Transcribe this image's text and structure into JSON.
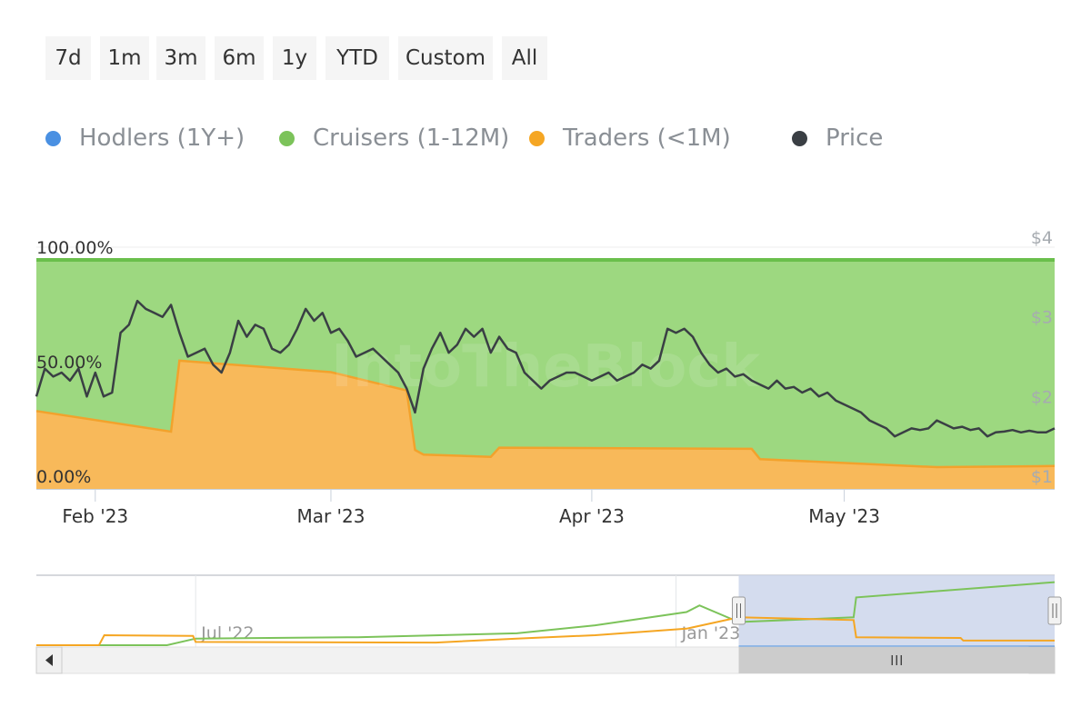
{
  "range_selector": {
    "buttons": [
      {
        "id": "7d",
        "label": "7d"
      },
      {
        "id": "1m",
        "label": "1m"
      },
      {
        "id": "3m",
        "label": "3m"
      },
      {
        "id": "6m",
        "label": "6m"
      },
      {
        "id": "1y",
        "label": "1y"
      },
      {
        "id": "ytd",
        "label": "YTD"
      },
      {
        "id": "custom",
        "label": "Custom"
      },
      {
        "id": "all",
        "label": "All"
      }
    ]
  },
  "legend": [
    {
      "name": "Hodlers (1Y+)",
      "color": "#4a90e2"
    },
    {
      "name": "Cruisers (1-12M)",
      "color": "#7cc35a"
    },
    {
      "name": "Traders (<1M)",
      "color": "#f5a623"
    },
    {
      "name": "Price",
      "color": "#3a3f44"
    }
  ],
  "watermark": "IntoTheBlock",
  "chart_data": {
    "type": "area",
    "x_ticks": [
      "Feb '23",
      "Mar '23",
      "Apr '23",
      "May '23"
    ],
    "y_left_ticks": [
      "0.00%",
      "50.00%",
      "100.00%"
    ],
    "y_right_ticks": [
      "$1",
      "$2",
      "$3",
      "$4"
    ],
    "y_left_range": [
      0,
      100
    ],
    "y_right_range": [
      1,
      4
    ],
    "x_range": [
      "2023-01-25",
      "2023-05-26"
    ],
    "series": [
      {
        "name": "Hodlers (1Y+)",
        "color": "#4a90e2",
        "points": [
          [
            "2023-01-25",
            0
          ],
          [
            "2023-05-26",
            0
          ]
        ]
      },
      {
        "name": "Cruisers (1-12M)",
        "color": "#7cc35a",
        "points": [
          [
            "2023-01-25",
            100
          ],
          [
            "2023-05-26",
            100
          ]
        ]
      },
      {
        "name": "Traders (<1M)",
        "color": "#f5a623",
        "points": [
          [
            "2023-01-25",
            34
          ],
          [
            "2023-02-10",
            25
          ],
          [
            "2023-02-11",
            56
          ],
          [
            "2023-03-01",
            51
          ],
          [
            "2023-03-10",
            43
          ],
          [
            "2023-03-11",
            17
          ],
          [
            "2023-03-12",
            15
          ],
          [
            "2023-03-20",
            14
          ],
          [
            "2023-03-21",
            18
          ],
          [
            "2023-04-20",
            17.5
          ],
          [
            "2023-04-21",
            13
          ],
          [
            "2023-05-12",
            9.5
          ],
          [
            "2023-05-26",
            10
          ]
        ]
      },
      {
        "name": "Price",
        "color": "#3a3f44",
        "points": [
          [
            "2023-01-25",
            2.0
          ],
          [
            "2023-01-26",
            2.35
          ],
          [
            "2023-01-27",
            2.25
          ],
          [
            "2023-01-28",
            2.3
          ],
          [
            "2023-01-29",
            2.2
          ],
          [
            "2023-01-30",
            2.35
          ],
          [
            "2023-01-31",
            2.0
          ],
          [
            "2023-02-01",
            2.3
          ],
          [
            "2023-02-02",
            2.0
          ],
          [
            "2023-02-03",
            2.05
          ],
          [
            "2023-02-04",
            2.8
          ],
          [
            "2023-02-05",
            2.9
          ],
          [
            "2023-02-06",
            3.2
          ],
          [
            "2023-02-07",
            3.1
          ],
          [
            "2023-02-08",
            3.05
          ],
          [
            "2023-02-09",
            3.0
          ],
          [
            "2023-02-10",
            3.15
          ],
          [
            "2023-02-11",
            2.8
          ],
          [
            "2023-02-12",
            2.5
          ],
          [
            "2023-02-13",
            2.55
          ],
          [
            "2023-02-14",
            2.6
          ],
          [
            "2023-02-15",
            2.4
          ],
          [
            "2023-02-16",
            2.3
          ],
          [
            "2023-02-17",
            2.55
          ],
          [
            "2023-02-18",
            2.95
          ],
          [
            "2023-02-19",
            2.75
          ],
          [
            "2023-02-20",
            2.9
          ],
          [
            "2023-02-21",
            2.85
          ],
          [
            "2023-02-22",
            2.6
          ],
          [
            "2023-02-23",
            2.55
          ],
          [
            "2023-02-24",
            2.65
          ],
          [
            "2023-02-25",
            2.85
          ],
          [
            "2023-02-26",
            3.1
          ],
          [
            "2023-02-27",
            2.95
          ],
          [
            "2023-02-28",
            3.05
          ],
          [
            "2023-03-01",
            2.8
          ],
          [
            "2023-03-02",
            2.85
          ],
          [
            "2023-03-03",
            2.7
          ],
          [
            "2023-03-04",
            2.5
          ],
          [
            "2023-03-05",
            2.55
          ],
          [
            "2023-03-06",
            2.6
          ],
          [
            "2023-03-07",
            2.5
          ],
          [
            "2023-03-08",
            2.4
          ],
          [
            "2023-03-09",
            2.3
          ],
          [
            "2023-03-10",
            2.1
          ],
          [
            "2023-03-11",
            1.8
          ],
          [
            "2023-03-12",
            2.35
          ],
          [
            "2023-03-13",
            2.6
          ],
          [
            "2023-03-14",
            2.8
          ],
          [
            "2023-03-15",
            2.55
          ],
          [
            "2023-03-16",
            2.65
          ],
          [
            "2023-03-17",
            2.85
          ],
          [
            "2023-03-18",
            2.75
          ],
          [
            "2023-03-19",
            2.85
          ],
          [
            "2023-03-20",
            2.55
          ],
          [
            "2023-03-21",
            2.75
          ],
          [
            "2023-03-22",
            2.6
          ],
          [
            "2023-03-23",
            2.55
          ],
          [
            "2023-03-24",
            2.3
          ],
          [
            "2023-03-25",
            2.2
          ],
          [
            "2023-03-26",
            2.1
          ],
          [
            "2023-03-27",
            2.2
          ],
          [
            "2023-03-28",
            2.25
          ],
          [
            "2023-03-29",
            2.3
          ],
          [
            "2023-03-30",
            2.3
          ],
          [
            "2023-03-31",
            2.25
          ],
          [
            "2023-04-01",
            2.2
          ],
          [
            "2023-04-02",
            2.25
          ],
          [
            "2023-04-03",
            2.3
          ],
          [
            "2023-04-04",
            2.2
          ],
          [
            "2023-04-05",
            2.25
          ],
          [
            "2023-04-06",
            2.3
          ],
          [
            "2023-04-07",
            2.4
          ],
          [
            "2023-04-08",
            2.35
          ],
          [
            "2023-04-09",
            2.45
          ],
          [
            "2023-04-10",
            2.85
          ],
          [
            "2023-04-11",
            2.8
          ],
          [
            "2023-04-12",
            2.85
          ],
          [
            "2023-04-13",
            2.75
          ],
          [
            "2023-04-14",
            2.55
          ],
          [
            "2023-04-15",
            2.4
          ],
          [
            "2023-04-16",
            2.3
          ],
          [
            "2023-04-17",
            2.35
          ],
          [
            "2023-04-18",
            2.25
          ],
          [
            "2023-04-19",
            2.28
          ],
          [
            "2023-04-20",
            2.2
          ],
          [
            "2023-04-21",
            2.15
          ],
          [
            "2023-04-22",
            2.1
          ],
          [
            "2023-04-23",
            2.2
          ],
          [
            "2023-04-24",
            2.1
          ],
          [
            "2023-04-25",
            2.12
          ],
          [
            "2023-04-26",
            2.05
          ],
          [
            "2023-04-27",
            2.1
          ],
          [
            "2023-04-28",
            2.0
          ],
          [
            "2023-04-29",
            2.05
          ],
          [
            "2023-04-30",
            1.95
          ],
          [
            "2023-05-01",
            1.9
          ],
          [
            "2023-05-02",
            1.85
          ],
          [
            "2023-05-03",
            1.8
          ],
          [
            "2023-05-04",
            1.7
          ],
          [
            "2023-05-05",
            1.65
          ],
          [
            "2023-05-06",
            1.6
          ],
          [
            "2023-05-07",
            1.5
          ],
          [
            "2023-05-08",
            1.55
          ],
          [
            "2023-05-09",
            1.6
          ],
          [
            "2023-05-10",
            1.58
          ],
          [
            "2023-05-11",
            1.6
          ],
          [
            "2023-05-12",
            1.7
          ],
          [
            "2023-05-13",
            1.65
          ],
          [
            "2023-05-14",
            1.6
          ],
          [
            "2023-05-15",
            1.62
          ],
          [
            "2023-05-16",
            1.58
          ],
          [
            "2023-05-17",
            1.6
          ],
          [
            "2023-05-18",
            1.5
          ],
          [
            "2023-05-19",
            1.55
          ],
          [
            "2023-05-20",
            1.56
          ],
          [
            "2023-05-21",
            1.58
          ],
          [
            "2023-05-22",
            1.55
          ],
          [
            "2023-05-23",
            1.57
          ],
          [
            "2023-05-24",
            1.55
          ],
          [
            "2023-05-25",
            1.55
          ],
          [
            "2023-05-26",
            1.6
          ]
        ]
      }
    ],
    "navigator": {
      "x_ticks": [
        "Jul '22",
        "Jan '23"
      ],
      "series": [
        {
          "name": "Cruisers (1-12M)",
          "color": "#7cc35a",
          "points": [
            [
              "2022-05-01",
              0
            ],
            [
              "2022-06-20",
              0
            ],
            [
              "2022-07-01",
              10
            ],
            [
              "2022-09-01",
              12
            ],
            [
              "2022-11-01",
              18
            ],
            [
              "2022-12-01",
              30
            ],
            [
              "2023-01-05",
              50
            ],
            [
              "2023-01-10",
              60
            ],
            [
              "2023-01-25",
              35
            ],
            [
              "2023-03-10",
              42
            ],
            [
              "2023-03-11",
              72
            ],
            [
              "2023-05-26",
              95
            ]
          ]
        },
        {
          "name": "Traders (<1M)",
          "color": "#f5a623",
          "points": [
            [
              "2022-05-01",
              0
            ],
            [
              "2022-05-25",
              0
            ],
            [
              "2022-05-27",
              15
            ],
            [
              "2022-06-30",
              14
            ],
            [
              "2022-07-01",
              5
            ],
            [
              "2022-10-01",
              4
            ],
            [
              "2022-11-01",
              10
            ],
            [
              "2022-12-01",
              15
            ],
            [
              "2023-01-05",
              25
            ],
            [
              "2023-01-25",
              42
            ],
            [
              "2023-03-10",
              38
            ],
            [
              "2023-03-11",
              12
            ],
            [
              "2023-04-20",
              11
            ],
            [
              "2023-04-21",
              7
            ],
            [
              "2023-05-26",
              7
            ]
          ]
        }
      ],
      "selected_range": [
        "2023-01-25",
        "2023-05-26"
      ]
    }
  }
}
